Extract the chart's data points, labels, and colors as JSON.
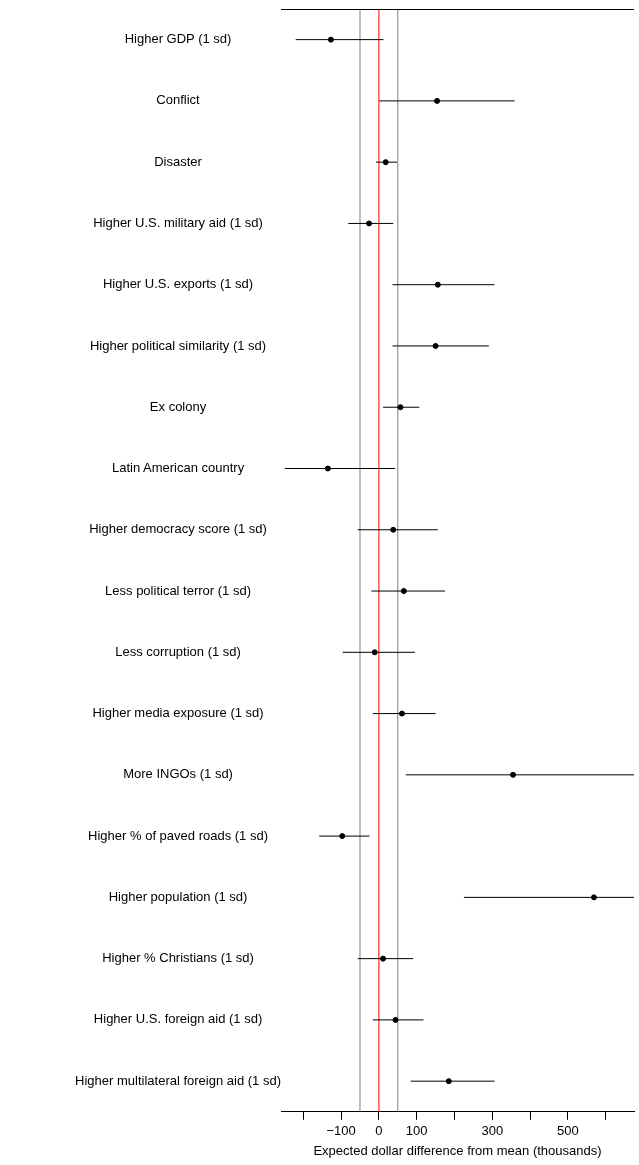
{
  "chart_data": {
    "type": "scatter",
    "orientation": "horizontal",
    "xlabel": "Expected dollar difference from mean (thousands)",
    "categories": [
      "Higher GDP (1 sd)",
      "Conflict",
      "Disaster",
      "Higher U.S. military aid (1 sd)",
      "Higher U.S. exports (1 sd)",
      "Higher political similarity (1 sd)",
      "Ex colony",
      "Latin American country",
      "Higher democracy score (1 sd)",
      "Less political terror (1 sd)",
      "Less corruption (1 sd)",
      "Higher media exposure (1 sd)",
      "More INGOs (1 sd)",
      "Higher % of paved roads (1 sd)",
      "Higher population (1 sd)",
      "Higher % Christians (1 sd)",
      "Higher U.S. foreign aid (1 sd)",
      "Higher multilateral foreign aid (1 sd)"
    ],
    "series": [
      {
        "color": "#000000",
        "values": [
          -127,
          154,
          18,
          -26,
          156,
          150,
          57,
          -135,
          38,
          66,
          -11,
          61,
          355,
          -97,
          569,
          11,
          44,
          185
        ],
        "errors": [
          [
            -220,
            12
          ],
          [
            1,
            359
          ],
          [
            -8,
            48
          ],
          [
            -81,
            38
          ],
          [
            36,
            306
          ],
          [
            36,
            291
          ],
          [
            11,
            107
          ],
          [
            -249,
            43
          ],
          [
            -56,
            156
          ],
          [
            -20,
            175
          ],
          [
            -96,
            95
          ],
          [
            -16,
            150
          ],
          [
            71,
            675
          ],
          [
            -158,
            -25
          ],
          [
            225,
            675
          ],
          [
            -56,
            91
          ],
          [
            -16,
            118
          ],
          [
            84,
            306
          ]
        ]
      }
    ],
    "xlim": [
      -259,
      675
    ],
    "xticks": [
      {
        "value": -200,
        "label": null
      },
      {
        "value": -100,
        "label": "−100"
      },
      0,
      100,
      {
        "value": 200,
        "label": null
      },
      300,
      {
        "value": 400,
        "label": null
      },
      500,
      {
        "value": 600,
        "label": null
      }
    ],
    "ref_lines": [
      {
        "axis": "x",
        "value": -50,
        "color": "#808080"
      },
      {
        "axis": "x",
        "value": 0,
        "color": "#ff0000"
      },
      {
        "axis": "x",
        "value": 50,
        "color": "#808080"
      }
    ],
    "marker": "circle",
    "grid": false,
    "legend": false
  }
}
